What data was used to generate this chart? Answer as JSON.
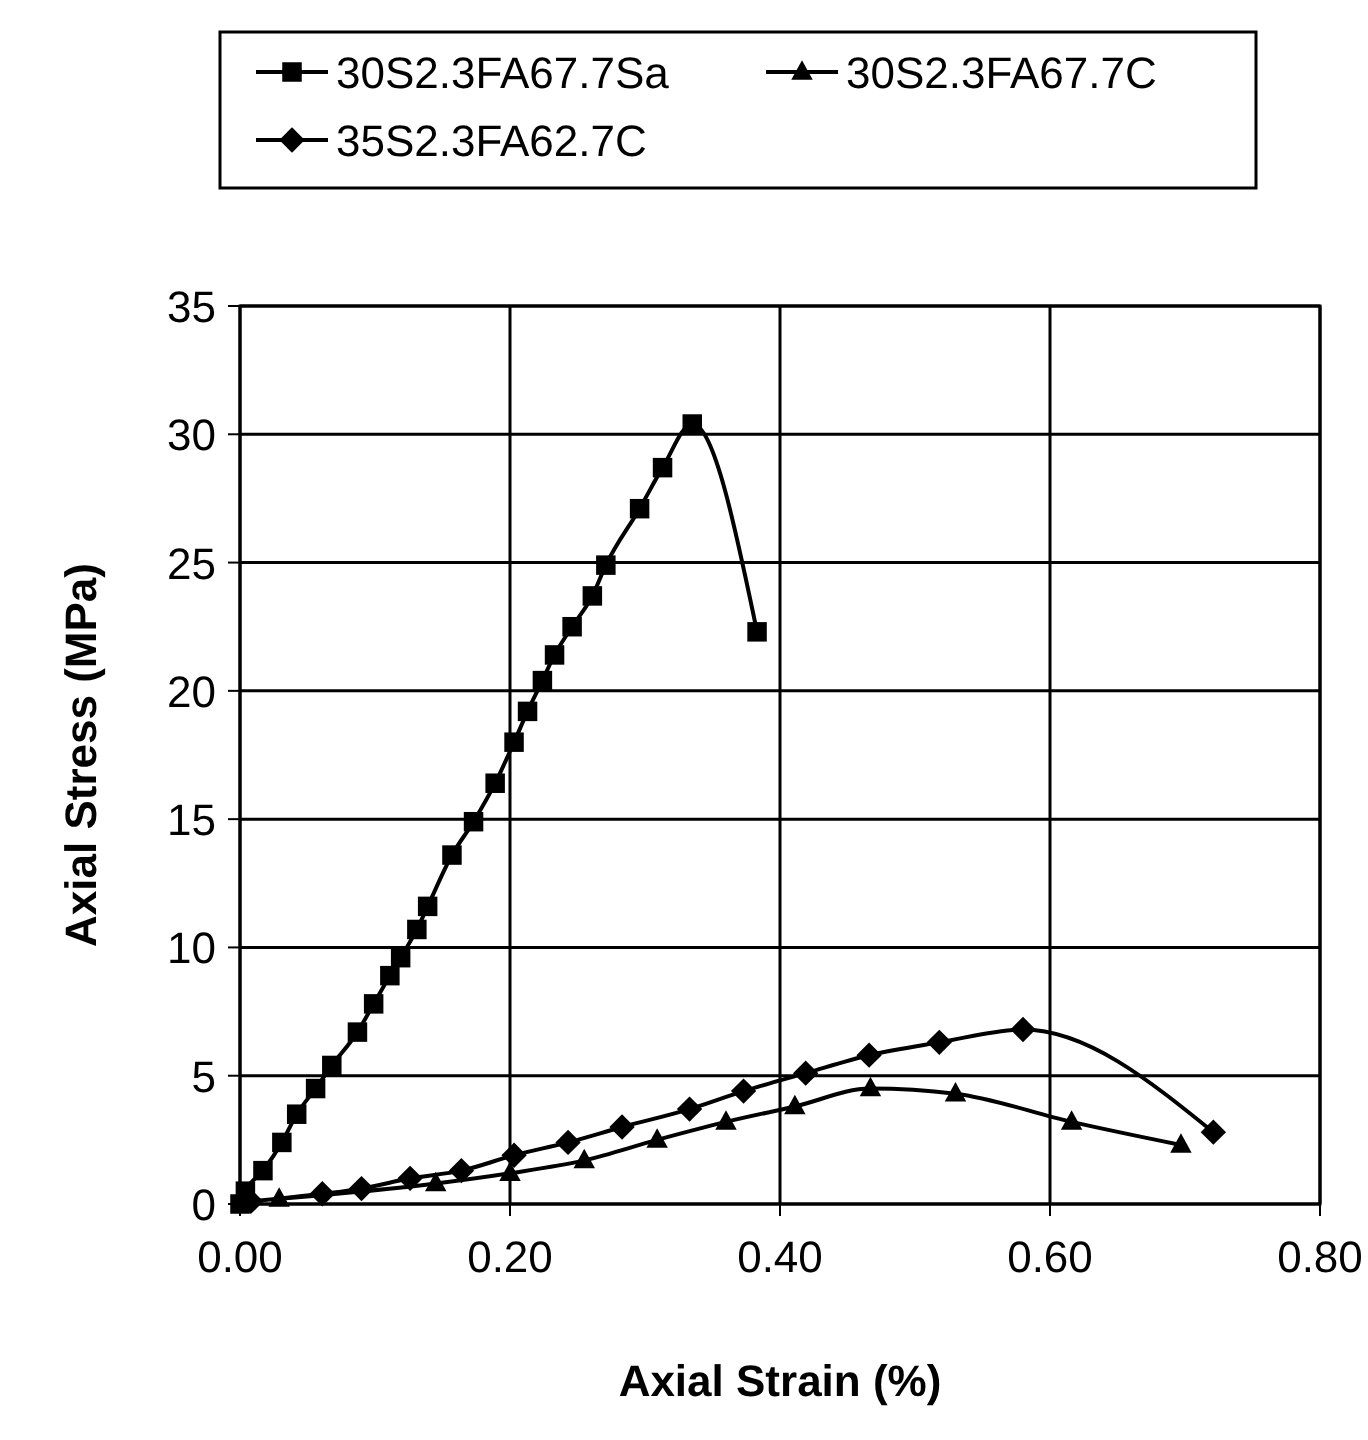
{
  "chart_data": {
    "type": "line",
    "xlabel": "Axial Strain (%)",
    "ylabel": "Axial Stress (MPa)",
    "xlim": [
      0,
      0.8
    ],
    "xticks": [
      {
        "value": 0,
        "label": "0.00"
      },
      {
        "value": 0.2,
        "label": "0.20"
      },
      {
        "value": 0.4,
        "label": "0.40"
      },
      {
        "value": 0.6,
        "label": "0.60"
      },
      {
        "value": 0.8,
        "label": "0.80"
      }
    ],
    "ylim": [
      0,
      35
    ],
    "yticks": [
      0,
      5,
      10,
      15,
      20,
      25,
      30,
      35
    ],
    "grid": true,
    "legend": "top",
    "line_style": "solid",
    "series": [
      {
        "name": "30S2.3FA67.7Sa",
        "color": "#000000",
        "marker": "square",
        "x": [
          0,
          0.004,
          0.017,
          0.031,
          0.042,
          0.056,
          0.068,
          0.087,
          0.099,
          0.111,
          0.119,
          0.131,
          0.139,
          0.157,
          0.173,
          0.189,
          0.203,
          0.213,
          0.224,
          0.233,
          0.246,
          0.261,
          0.271,
          0.296,
          0.313,
          0.335,
          0.383
        ],
        "values": [
          0,
          0.5,
          1.3,
          2.4,
          3.5,
          4.5,
          5.4,
          6.7,
          7.8,
          8.9,
          9.6,
          10.7,
          11.6,
          13.6,
          14.9,
          16.4,
          18.0,
          19.2,
          20.4,
          21.4,
          22.5,
          23.7,
          24.9,
          27.1,
          28.7,
          30.4,
          22.3
        ]
      },
      {
        "name": "30S2.3FA67.7C",
        "color": "#000000",
        "marker": "triangle",
        "x": [
          0.029,
          0.145,
          0.2,
          0.255,
          0.309,
          0.36,
          0.411,
          0.467,
          0.53,
          0.616,
          0.697
        ],
        "values": [
          0.2,
          0.8,
          1.2,
          1.7,
          2.5,
          3.2,
          3.8,
          4.5,
          4.3,
          3.2,
          2.3
        ]
      },
      {
        "name": "35S2.3FA62.7C",
        "color": "#000000",
        "marker": "diamond",
        "x": [
          0.008,
          0.061,
          0.09,
          0.126,
          0.164,
          0.203,
          0.243,
          0.283,
          0.333,
          0.373,
          0.419,
          0.466,
          0.518,
          0.58,
          0.721
        ],
        "values": [
          0.1,
          0.4,
          0.6,
          1.0,
          1.3,
          1.9,
          2.4,
          3.0,
          3.7,
          4.4,
          5.1,
          5.8,
          6.3,
          6.8,
          2.8
        ]
      }
    ]
  }
}
